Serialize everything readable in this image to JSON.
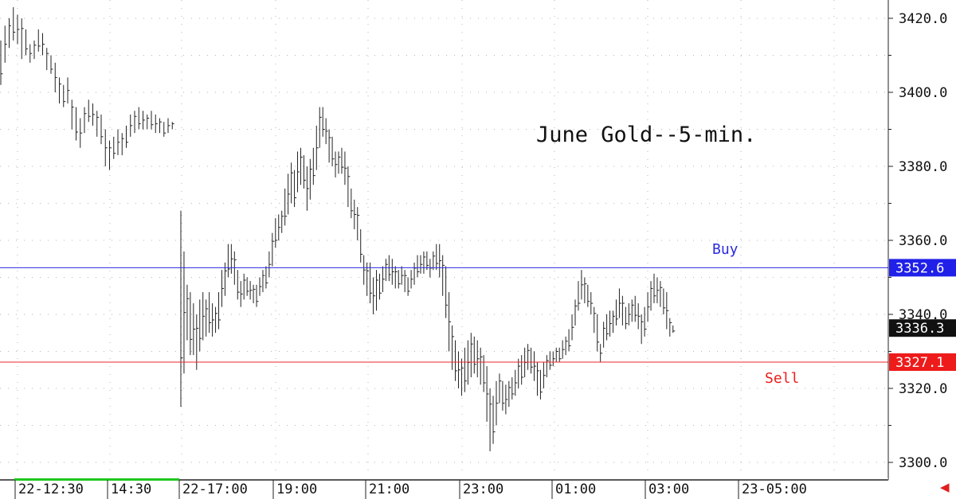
{
  "chart_data": {
    "type": "ohlc",
    "title": "June Gold--5-min.",
    "y_ticks": [
      "3420.0",
      "3400.0",
      "3380.0",
      "3360.0",
      "3340.0",
      "3320.0",
      "3300.0"
    ],
    "y_tick_values": [
      3420,
      3400,
      3380,
      3360,
      3340,
      3320,
      3300
    ],
    "ylim": [
      3296,
      3426
    ],
    "x_labels": [
      "22-12:30",
      "14:30",
      "22-17:00",
      "19:00",
      "21:00",
      "23:00",
      "01:00",
      "03:00",
      "23-05:00"
    ],
    "grid": "dotted",
    "levels": [
      {
        "name": "Buy",
        "value": 3352.6,
        "color": "#2a2adf",
        "tag_bg": "#2020e8",
        "tag_text": "3352.6"
      },
      {
        "name": "Sell",
        "value": 3327.1,
        "color": "#f02525",
        "tag_bg": "#ee1b1b",
        "tag_text": "3327.1"
      }
    ],
    "last_price": {
      "value": 3336.3,
      "tag_text": "3336.3",
      "tag_bg": "#111111"
    },
    "segments": [
      {
        "name": "session-1",
        "bars": [
          [
            3414,
            3402
          ],
          [
            3418,
            3408
          ],
          [
            3420,
            3412
          ],
          [
            3423,
            3414
          ],
          [
            3421,
            3413
          ],
          [
            3420,
            3409
          ],
          [
            3417,
            3410
          ],
          [
            3413,
            3408
          ],
          [
            3414,
            3409
          ],
          [
            3417,
            3411
          ],
          [
            3416,
            3410
          ],
          [
            3412,
            3406
          ],
          [
            3410,
            3405
          ],
          [
            3408,
            3400
          ],
          [
            3404,
            3397
          ],
          [
            3402,
            3396
          ],
          [
            3404,
            3397
          ],
          [
            3398,
            3390
          ],
          [
            3396,
            3387
          ],
          [
            3393,
            3385
          ],
          [
            3396,
            3389
          ],
          [
            3398,
            3392
          ],
          [
            3397,
            3391
          ],
          [
            3395,
            3388
          ],
          [
            3394,
            3386
          ],
          [
            3390,
            3380
          ],
          [
            3387,
            3379
          ],
          [
            3388,
            3382
          ],
          [
            3390,
            3383
          ],
          [
            3389,
            3383
          ],
          [
            3391,
            3385
          ],
          [
            3394,
            3388
          ],
          [
            3395,
            3389
          ],
          [
            3396,
            3390
          ],
          [
            3395,
            3390
          ],
          [
            3394,
            3390
          ],
          [
            3395,
            3390
          ],
          [
            3394,
            3389
          ],
          [
            3393,
            3389
          ],
          [
            3392,
            3388
          ],
          [
            3393,
            3389
          ],
          [
            3392,
            3390
          ]
        ]
      },
      {
        "name": "session-2",
        "bars": [
          [
            3368,
            3315
          ],
          [
            3357,
            3324
          ],
          [
            3348,
            3333
          ],
          [
            3346,
            3329
          ],
          [
            3343,
            3329
          ],
          [
            3340,
            3325
          ],
          [
            3344,
            3330
          ],
          [
            3346,
            3333
          ],
          [
            3344,
            3334
          ],
          [
            3346,
            3335
          ],
          [
            3343,
            3334
          ],
          [
            3342,
            3335
          ],
          [
            3346,
            3336
          ],
          [
            3352,
            3342
          ],
          [
            3354,
            3345
          ],
          [
            3359,
            3350
          ],
          [
            3359,
            3351
          ],
          [
            3357,
            3348
          ],
          [
            3352,
            3344
          ],
          [
            3349,
            3342
          ],
          [
            3351,
            3344
          ],
          [
            3350,
            3345
          ],
          [
            3349,
            3344
          ],
          [
            3348,
            3343
          ],
          [
            3348,
            3342
          ],
          [
            3350,
            3345
          ],
          [
            3352,
            3346
          ],
          [
            3353,
            3347
          ],
          [
            3357,
            3350
          ],
          [
            3362,
            3353
          ],
          [
            3366,
            3358
          ],
          [
            3367,
            3360
          ],
          [
            3368,
            3362
          ],
          [
            3374,
            3364
          ],
          [
            3378,
            3367
          ],
          [
            3381,
            3370
          ],
          [
            3379,
            3369
          ],
          [
            3384,
            3373
          ],
          [
            3385,
            3375
          ],
          [
            3383,
            3374
          ],
          [
            3380,
            3368
          ],
          [
            3382,
            3371
          ],
          [
            3385,
            3375
          ],
          [
            3391,
            3379
          ],
          [
            3396,
            3385
          ],
          [
            3396,
            3388
          ],
          [
            3393,
            3386
          ],
          [
            3390,
            3381
          ],
          [
            3388,
            3380
          ],
          [
            3384,
            3377
          ],
          [
            3384,
            3378
          ],
          [
            3385,
            3378
          ],
          [
            3384,
            3375
          ],
          [
            3380,
            3369
          ],
          [
            3374,
            3366
          ],
          [
            3371,
            3363
          ],
          [
            3369,
            3360
          ],
          [
            3363,
            3354
          ],
          [
            3356,
            3348
          ],
          [
            3354,
            3345
          ],
          [
            3354,
            3343
          ],
          [
            3350,
            3340
          ],
          [
            3352,
            3341
          ],
          [
            3351,
            3344
          ],
          [
            3353,
            3346
          ],
          [
            3355,
            3349
          ],
          [
            3356,
            3349
          ],
          [
            3355,
            3348
          ],
          [
            3353,
            3347
          ],
          [
            3352,
            3347
          ],
          [
            3353,
            3348
          ],
          [
            3352,
            3346
          ],
          [
            3350,
            3345
          ],
          [
            3352,
            3347
          ],
          [
            3354,
            3348
          ],
          [
            3356,
            3350
          ],
          [
            3356,
            3351
          ],
          [
            3357,
            3351
          ],
          [
            3357,
            3352
          ],
          [
            3355,
            3350
          ],
          [
            3357,
            3352
          ],
          [
            3359,
            3352
          ],
          [
            3359,
            3350
          ],
          [
            3356,
            3345
          ],
          [
            3353,
            3339
          ],
          [
            3346,
            3330
          ],
          [
            3337,
            3325
          ],
          [
            3333,
            3322
          ],
          [
            3330,
            3320
          ],
          [
            3328,
            3318
          ],
          [
            3331,
            3319
          ],
          [
            3333,
            3321
          ],
          [
            3335,
            3323
          ],
          [
            3334,
            3324
          ],
          [
            3333,
            3323
          ],
          [
            3331,
            3321
          ],
          [
            3329,
            3319
          ],
          [
            3326,
            3311
          ],
          [
            3320,
            3303
          ],
          [
            3318,
            3305
          ],
          [
            3322,
            3310
          ],
          [
            3324,
            3316
          ],
          [
            3322,
            3314
          ],
          [
            3321,
            3313
          ],
          [
            3322,
            3315
          ],
          [
            3323,
            3317
          ],
          [
            3325,
            3318
          ],
          [
            3328,
            3320
          ],
          [
            3329,
            3321
          ],
          [
            3331,
            3323
          ],
          [
            3332,
            3325
          ],
          [
            3331,
            3324
          ],
          [
            3330,
            3322
          ],
          [
            3327,
            3318
          ],
          [
            3325,
            3317
          ],
          [
            3327,
            3320
          ],
          [
            3329,
            3323
          ],
          [
            3330,
            3325
          ],
          [
            3330,
            3326
          ],
          [
            3331,
            3327
          ],
          [
            3331,
            3327
          ],
          [
            3333,
            3328
          ],
          [
            3334,
            3329
          ],
          [
            3336,
            3330
          ],
          [
            3340,
            3333
          ],
          [
            3344,
            3337
          ],
          [
            3349,
            3341
          ],
          [
            3352,
            3344
          ],
          [
            3350,
            3343
          ],
          [
            3348,
            3342
          ],
          [
            3346,
            3340
          ],
          [
            3342,
            3335
          ],
          [
            3340,
            3330
          ],
          [
            3332,
            3327
          ],
          [
            3338,
            3331
          ],
          [
            3340,
            3333
          ],
          [
            3341,
            3334
          ],
          [
            3341,
            3335
          ],
          [
            3344,
            3337
          ],
          [
            3347,
            3339
          ],
          [
            3345,
            3337
          ],
          [
            3342,
            3336
          ],
          [
            3343,
            3337
          ],
          [
            3344,
            3338
          ],
          [
            3345,
            3338
          ],
          [
            3343,
            3336
          ],
          [
            3340,
            3332
          ],
          [
            3342,
            3334
          ],
          [
            3346,
            3338
          ],
          [
            3349,
            3341
          ],
          [
            3351,
            3343
          ],
          [
            3350,
            3343
          ],
          [
            3349,
            3342
          ],
          [
            3347,
            3340
          ],
          [
            3346,
            3336
          ],
          [
            3339,
            3334
          ],
          [
            3337,
            3335
          ]
        ]
      }
    ]
  },
  "sidebar_arrow": "◀"
}
